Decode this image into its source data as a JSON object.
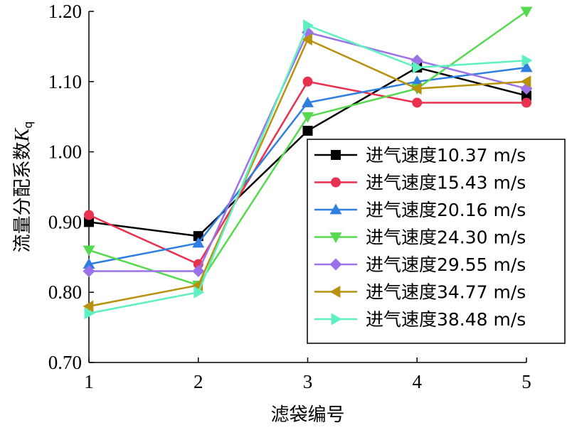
{
  "chart_data": {
    "type": "line",
    "x": [
      1,
      2,
      3,
      4,
      5
    ],
    "xlabel": "滤袋编号",
    "ylabel_main": "流量分配系数",
    "ylabel_symbol": "K",
    "ylabel_subscript": "q",
    "ylim": [
      0.7,
      1.2
    ],
    "yticks": [
      "0.70",
      "0.80",
      "0.90",
      "1.00",
      "1.10",
      "1.20"
    ],
    "xticks": [
      "1",
      "2",
      "3",
      "4",
      "5"
    ],
    "grid": false,
    "legend_position": "right",
    "series": [
      {
        "name": "进气速度10.37 m/s",
        "color": "#000000",
        "marker": "square",
        "values": [
          0.9,
          0.88,
          1.03,
          1.12,
          1.08
        ]
      },
      {
        "name": "进气速度15.43 m/s",
        "color": "#e8304f",
        "marker": "circle",
        "values": [
          0.91,
          0.84,
          1.1,
          1.07,
          1.07
        ]
      },
      {
        "name": "进气速度20.16 m/s",
        "color": "#2f7fe0",
        "marker": "triangle-up",
        "values": [
          0.84,
          0.87,
          1.07,
          1.1,
          1.12
        ]
      },
      {
        "name": "进气速度24.30 m/s",
        "color": "#55d94e",
        "marker": "triangle-down",
        "values": [
          0.86,
          0.81,
          1.05,
          1.09,
          1.2
        ]
      },
      {
        "name": "进气速度29.55 m/s",
        "color": "#9b72e8",
        "marker": "diamond",
        "values": [
          0.83,
          0.83,
          1.17,
          1.13,
          1.09
        ]
      },
      {
        "name": "进气速度34.77 m/s",
        "color": "#b8920e",
        "marker": "triangle-left",
        "values": [
          0.78,
          0.81,
          1.16,
          1.09,
          1.1
        ]
      },
      {
        "name": "进气速度38.48 m/s",
        "color": "#5ef0c0",
        "marker": "triangle-right",
        "values": [
          0.77,
          0.8,
          1.18,
          1.12,
          1.13
        ]
      }
    ]
  }
}
